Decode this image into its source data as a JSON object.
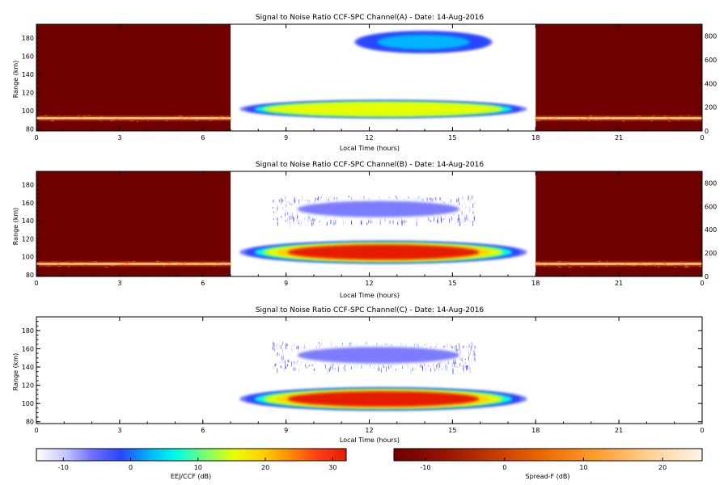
{
  "colors": {
    "snr_scale": [
      "#ffffff",
      "#c8c8ff",
      "#6e6eff",
      "#2846ff",
      "#00b4ff",
      "#00ffe6",
      "#7aff6e",
      "#e6ff00",
      "#ffd200",
      "#ff8c00",
      "#ff3c14",
      "#e61e00"
    ],
    "spreadf_scale": [
      "#6e0000",
      "#961400",
      "#c83c00",
      "#f06e00",
      "#ffa032",
      "#ffd296",
      "#fff5e8"
    ],
    "frame": "#000000",
    "background": "#ffffff"
  },
  "chart_data": [
    {
      "type": "heatmap",
      "title": "Signal to Noise Ratio CCF-SPC Channel(A) - Date: 14-Aug-2016",
      "xlabel": "Local Time (hours)",
      "ylabel": "Range (km)",
      "xlim": [
        0,
        24
      ],
      "ylim": [
        78,
        195
      ],
      "x_ticks": [
        "0",
        "3",
        "6",
        "9",
        "12",
        "15",
        "18",
        "21",
        "0"
      ],
      "y_ticks": [
        "80",
        "100",
        "120",
        "140",
        "160",
        "180"
      ],
      "y2_ticks": [
        "0",
        "200",
        "400",
        "600",
        "800"
      ],
      "y2lim": [
        0,
        900
      ],
      "spreadf_windows": [
        [
          0,
          7
        ],
        [
          18,
          24
        ]
      ],
      "spreadf_band_range_km": 92,
      "echo_regions": [
        {
          "t_start": 7.0,
          "t_end": 17.8,
          "r_low": 92,
          "r_high": 112,
          "peak_db": 16
        },
        {
          "t_start": 11.3,
          "t_end": 16.5,
          "r_low": 163,
          "r_high": 188,
          "peak_db": 3
        }
      ]
    },
    {
      "type": "heatmap",
      "title": "Signal to Noise Ratio CCF-SPC Channel(B) - Date: 14-Aug-2016",
      "xlabel": "Local Time (hours)",
      "ylabel": "Range (km)",
      "xlim": [
        0,
        24
      ],
      "ylim": [
        78,
        195
      ],
      "x_ticks": [
        "0",
        "3",
        "6",
        "9",
        "12",
        "15",
        "18",
        "21",
        "0"
      ],
      "y_ticks": [
        "80",
        "100",
        "120",
        "140",
        "160",
        "180"
      ],
      "y2_ticks": [
        "0",
        "200",
        "400",
        "600",
        "800"
      ],
      "y2lim": [
        0,
        900
      ],
      "spreadf_windows": [
        [
          0,
          7
        ],
        [
          18,
          24
        ]
      ],
      "spreadf_band_range_km": 92,
      "echo_regions": [
        {
          "t_start": 7.0,
          "t_end": 17.8,
          "r_low": 92,
          "r_high": 118,
          "peak_db": 30
        },
        {
          "t_start": 8.5,
          "t_end": 15.8,
          "r_low": 138,
          "r_high": 168,
          "peak_db": -6
        }
      ]
    },
    {
      "type": "heatmap",
      "title": "Signal to Noise Ratio CCF-SPC Channel(C) - Date: 14-Aug-2016",
      "xlabel": "Local Time (hours)",
      "ylabel": "Range (km)",
      "xlim": [
        0,
        24
      ],
      "ylim": [
        78,
        195
      ],
      "x_ticks": [
        "0",
        "3",
        "6",
        "9",
        "12",
        "15",
        "18",
        "21",
        "0"
      ],
      "y_ticks": [
        "80",
        "100",
        "120",
        "140",
        "160",
        "180"
      ],
      "echo_regions": [
        {
          "t_start": 7.0,
          "t_end": 17.8,
          "r_low": 92,
          "r_high": 118,
          "peak_db": 30
        },
        {
          "t_start": 8.5,
          "t_end": 15.8,
          "r_low": 138,
          "r_high": 168,
          "peak_db": -6
        }
      ]
    }
  ],
  "colorbars": [
    {
      "label": "EEJ/CCF (dB)",
      "ticks": [
        "-10",
        "0",
        "10",
        "20",
        "30"
      ],
      "range": [
        -14,
        32
      ]
    },
    {
      "label": "Spread-F (dB)",
      "ticks": [
        "-10",
        "0",
        "10",
        "20"
      ],
      "range": [
        -14,
        25
      ]
    }
  ]
}
